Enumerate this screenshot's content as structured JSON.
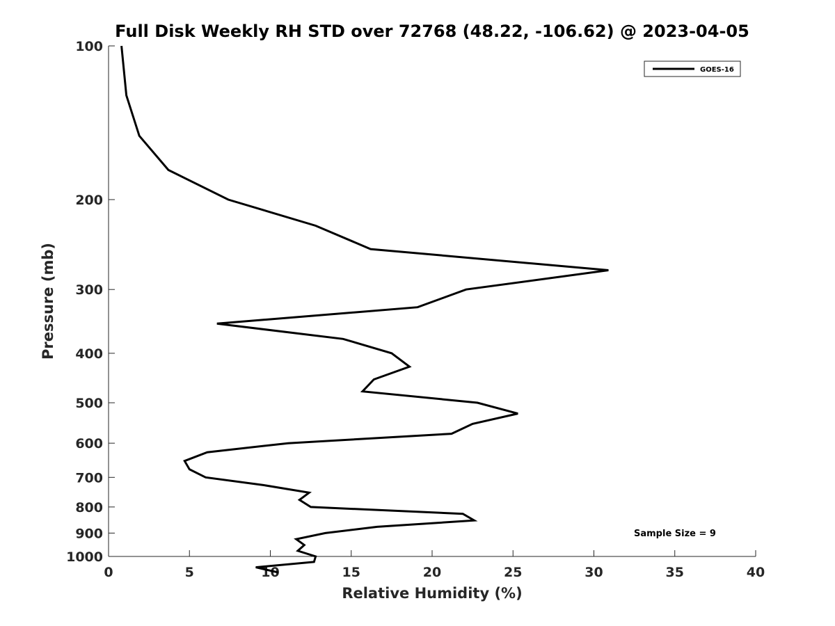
{
  "chart_data": {
    "type": "line",
    "title": "Full Disk Weekly RH STD over 72768 (48.22, -106.62) @ 2023-04-05",
    "xlabel": "Relative Humidity (%)",
    "ylabel": "Pressure (mb)",
    "xlim": [
      0,
      40
    ],
    "ylim": [
      100,
      1000
    ],
    "y_scale": "log",
    "y_reversed": true,
    "x_ticks": [
      0,
      5,
      10,
      15,
      20,
      25,
      30,
      35,
      40
    ],
    "y_ticks": [
      100,
      200,
      300,
      400,
      500,
      600,
      700,
      800,
      900,
      1000
    ],
    "grid": false,
    "legend_position": "top-right",
    "series": [
      {
        "name": "GOES-16",
        "color": "#000000",
        "points": [
          {
            "x": 0.8,
            "p": 100
          },
          {
            "x": 1.1,
            "p": 125
          },
          {
            "x": 1.9,
            "p": 150
          },
          {
            "x": 3.7,
            "p": 175
          },
          {
            "x": 7.4,
            "p": 200
          },
          {
            "x": 12.8,
            "p": 225
          },
          {
            "x": 16.2,
            "p": 250
          },
          {
            "x": 30.9,
            "p": 275
          },
          {
            "x": 22.1,
            "p": 300
          },
          {
            "x": 19.1,
            "p": 325
          },
          {
            "x": 6.7,
            "p": 350
          },
          {
            "x": 14.5,
            "p": 375
          },
          {
            "x": 17.5,
            "p": 400
          },
          {
            "x": 18.6,
            "p": 425
          },
          {
            "x": 16.4,
            "p": 450
          },
          {
            "x": 15.7,
            "p": 475
          },
          {
            "x": 22.8,
            "p": 500
          },
          {
            "x": 25.3,
            "p": 525
          },
          {
            "x": 22.5,
            "p": 550
          },
          {
            "x": 21.2,
            "p": 575
          },
          {
            "x": 11.1,
            "p": 600
          },
          {
            "x": 6.1,
            "p": 625
          },
          {
            "x": 4.7,
            "p": 650
          },
          {
            "x": 5.0,
            "p": 675
          },
          {
            "x": 6.0,
            "p": 700
          },
          {
            "x": 9.6,
            "p": 725
          },
          {
            "x": 12.4,
            "p": 750
          },
          {
            "x": 11.8,
            "p": 775
          },
          {
            "x": 12.5,
            "p": 800
          },
          {
            "x": 21.9,
            "p": 825
          },
          {
            "x": 22.6,
            "p": 850
          },
          {
            "x": 16.6,
            "p": 875
          },
          {
            "x": 13.4,
            "p": 900
          },
          {
            "x": 11.6,
            "p": 925
          },
          {
            "x": 12.1,
            "p": 950
          },
          {
            "x": 11.7,
            "p": 975
          },
          {
            "x": 12.8,
            "p": 1000
          },
          {
            "x": 12.7,
            "p": 1025
          },
          {
            "x": 9.1,
            "p": 1050
          },
          {
            "x": 10.5,
            "p": 1075
          }
        ]
      }
    ],
    "annotations": [
      {
        "text": "Sample Size = 9"
      }
    ]
  }
}
